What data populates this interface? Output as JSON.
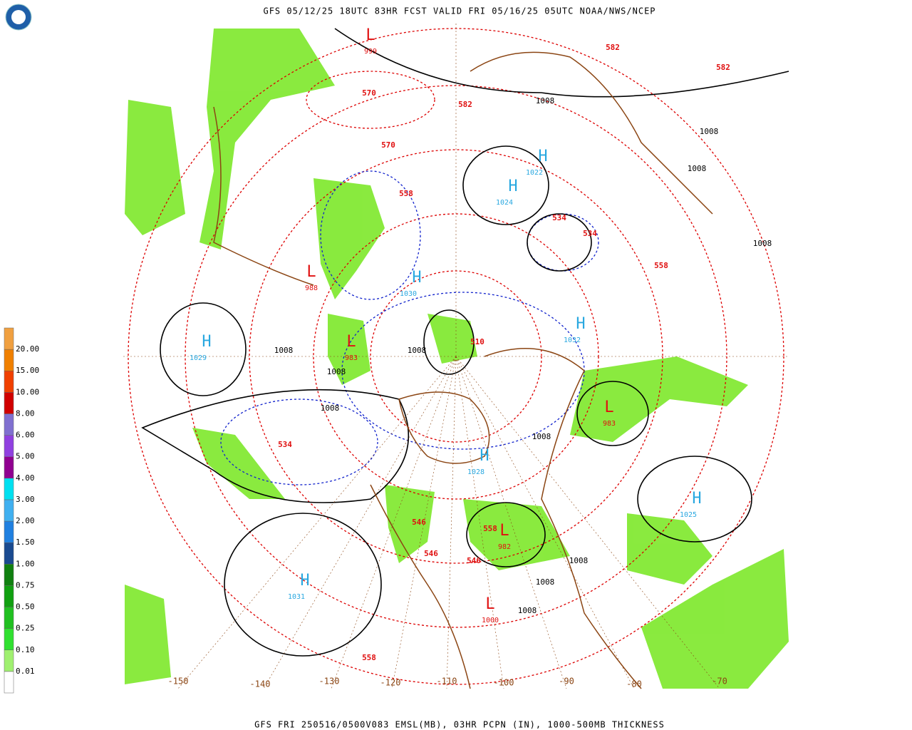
{
  "header": {
    "title": "GFS 05/12/25 18UTC 83HR FCST VALID FRI 05/16/25 05UTC NOAA/NWS/NCEP"
  },
  "footer": {
    "caption": "GFS FRI 250516/0500V083 EMSL(MB), 03HR PCPN (IN), 1000-500MB THICKNESS"
  },
  "legend": {
    "labels": [
      "0.01",
      "0.10",
      "0.25",
      "0.50",
      "0.75",
      "1.00",
      "1.50",
      "2.00",
      "3.00",
      "4.00",
      "5.00",
      "6.00",
      "8.00",
      "10.00",
      "15.00",
      "20.00"
    ]
  },
  "map": {
    "longitudes": [
      "-150",
      "-140",
      "-130",
      "-120",
      "-110",
      "-100",
      "-90",
      "-80",
      "-70"
    ],
    "highs": [
      {
        "symbol": "H",
        "value": "1029"
      },
      {
        "symbol": "H",
        "value": "1031"
      },
      {
        "symbol": "H",
        "value": "1025"
      },
      {
        "symbol": "H",
        "value": "1032"
      },
      {
        "symbol": "H",
        "value": "1024"
      },
      {
        "symbol": "H",
        "value": "1030"
      },
      {
        "symbol": "H",
        "value": "1022"
      },
      {
        "symbol": "H",
        "value": "1028"
      }
    ],
    "lows": [
      {
        "symbol": "L",
        "value": "983"
      },
      {
        "symbol": "L",
        "value": "982"
      },
      {
        "symbol": "L",
        "value": "1000"
      },
      {
        "symbol": "L",
        "value": "988"
      },
      {
        "symbol": "L",
        "value": "999"
      },
      {
        "symbol": "L",
        "value": "983"
      }
    ],
    "thickness": [
      "546",
      "546",
      "546",
      "558",
      "558",
      "558",
      "570",
      "570",
      "582",
      "582",
      "582",
      "534",
      "534",
      "534",
      "510",
      "558"
    ],
    "isobars": [
      "1008",
      "1008",
      "1008",
      "1008",
      "1008",
      "1008",
      "1008",
      "1008",
      "1008",
      "1008",
      "1008",
      "1008"
    ]
  }
}
